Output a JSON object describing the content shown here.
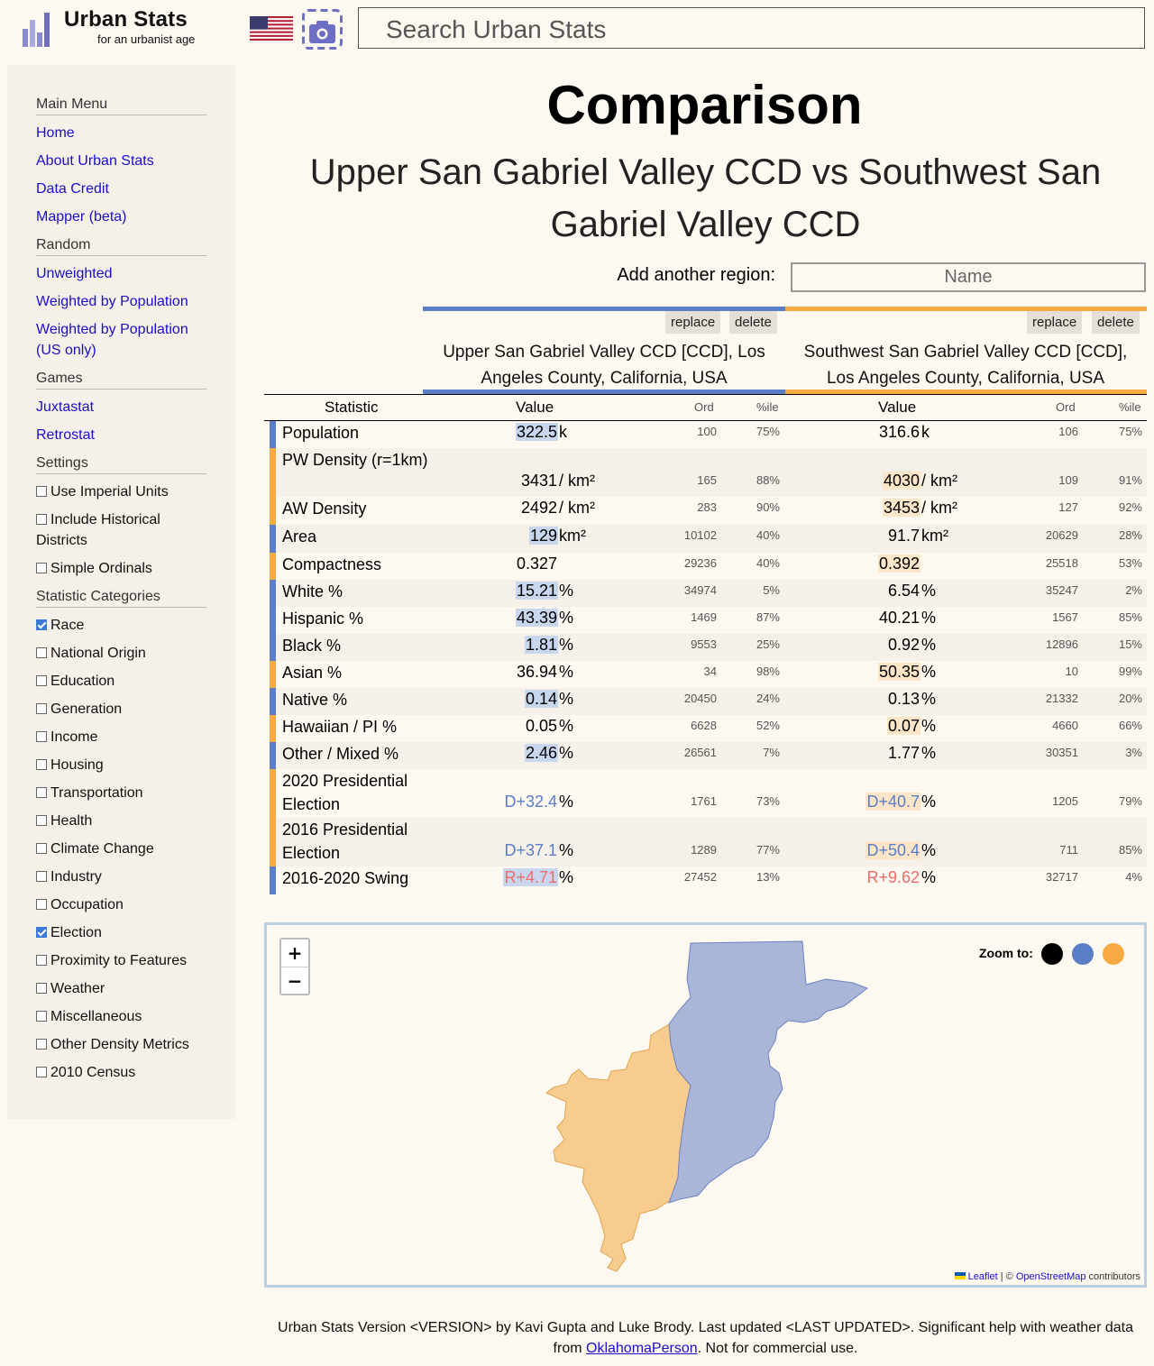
{
  "header": {
    "brand_title": "Urban Stats",
    "brand_subtitle": "for an urbanist age",
    "search_placeholder": "Search Urban Stats"
  },
  "sidebar": {
    "main_menu_heading": "Main Menu",
    "main_menu": [
      "Home",
      "About Urban Stats",
      "Data Credit",
      "Mapper (beta)"
    ],
    "random_heading": "Random",
    "random": [
      "Unweighted",
      "Weighted by Population",
      "Weighted by Population (US only)"
    ],
    "games_heading": "Games",
    "games": [
      "Juxtastat",
      "Retrostat"
    ],
    "settings_heading": "Settings",
    "settings": [
      {
        "label": "Use Imperial Units",
        "checked": false
      },
      {
        "label": "Include Historical Districts",
        "checked": false
      },
      {
        "label": "Simple Ordinals",
        "checked": false
      }
    ],
    "categories_heading": "Statistic Categories",
    "categories": [
      {
        "label": "Race",
        "checked": true
      },
      {
        "label": "National Origin",
        "checked": false
      },
      {
        "label": "Education",
        "checked": false
      },
      {
        "label": "Generation",
        "checked": false
      },
      {
        "label": "Income",
        "checked": false
      },
      {
        "label": "Housing",
        "checked": false
      },
      {
        "label": "Transportation",
        "checked": false
      },
      {
        "label": "Health",
        "checked": false
      },
      {
        "label": "Climate Change",
        "checked": false
      },
      {
        "label": "Industry",
        "checked": false
      },
      {
        "label": "Occupation",
        "checked": false
      },
      {
        "label": "Election",
        "checked": true
      },
      {
        "label": "Proximity to Features",
        "checked": false
      },
      {
        "label": "Weather",
        "checked": false
      },
      {
        "label": "Miscellaneous",
        "checked": false
      },
      {
        "label": "Other Density Metrics",
        "checked": false
      },
      {
        "label": "2010 Census",
        "checked": false
      }
    ]
  },
  "main": {
    "title": "Comparison",
    "subtitle": "Upper San Gabriel Valley CCD vs Southwest San Gabriel Valley CCD",
    "add_region_label": "Add another region:",
    "add_region_placeholder": "Name",
    "replace_label": "replace",
    "delete_label": "delete",
    "regions": [
      {
        "name": "Upper San Gabriel Valley CCD [CCD], Los Angeles County, California, USA",
        "color": "#5a7dc8"
      },
      {
        "name": "Southwest San Gabriel Valley CCD [CCD], Los Angeles County, California, USA",
        "color": "#f7aa41"
      }
    ],
    "columns": {
      "statistic": "Statistic",
      "value": "Value",
      "ord": "Ord",
      "pct": "%ile"
    },
    "rows": [
      {
        "stat": "Population",
        "a": {
          "num": "322.5",
          "unit": "k",
          "ord": "100",
          "pct": "75%"
        },
        "b": {
          "num": "316.6",
          "unit": "k",
          "ord": "106",
          "pct": "75%"
        },
        "winner": "a"
      },
      {
        "stat": "PW Density (r=1km)",
        "a": {
          "num": "3431",
          "unit": "/ km²",
          "ord": "165",
          "pct": "88%"
        },
        "b": {
          "num": "4030",
          "unit": "/ km²",
          "ord": "109",
          "pct": "91%"
        },
        "winner": "b"
      },
      {
        "stat": "AW Density",
        "a": {
          "num": "2492",
          "unit": "/ km²",
          "ord": "283",
          "pct": "90%"
        },
        "b": {
          "num": "3453",
          "unit": "/ km²",
          "ord": "127",
          "pct": "92%"
        },
        "winner": "b"
      },
      {
        "stat": "Area",
        "a": {
          "num": "129",
          "unit": "km²",
          "ord": "10102",
          "pct": "40%"
        },
        "b": {
          "num": "91.7",
          "unit": "km²",
          "ord": "20629",
          "pct": "28%"
        },
        "winner": "a"
      },
      {
        "stat": "Compactness",
        "a": {
          "num": "0.327",
          "unit": "",
          "ord": "29236",
          "pct": "40%"
        },
        "b": {
          "num": "0.392",
          "unit": "",
          "ord": "25518",
          "pct": "53%"
        },
        "winner": "b"
      },
      {
        "stat": "White %",
        "a": {
          "num": "15.21",
          "unit": "%",
          "ord": "34974",
          "pct": "5%"
        },
        "b": {
          "num": "6.54",
          "unit": "%",
          "ord": "35247",
          "pct": "2%"
        },
        "winner": "a"
      },
      {
        "stat": "Hispanic %",
        "a": {
          "num": "43.39",
          "unit": "%",
          "ord": "1469",
          "pct": "87%"
        },
        "b": {
          "num": "40.21",
          "unit": "%",
          "ord": "1567",
          "pct": "85%"
        },
        "winner": "a"
      },
      {
        "stat": "Black %",
        "a": {
          "num": "1.81",
          "unit": "%",
          "ord": "9553",
          "pct": "25%"
        },
        "b": {
          "num": "0.92",
          "unit": "%",
          "ord": "12896",
          "pct": "15%"
        },
        "winner": "a"
      },
      {
        "stat": "Asian %",
        "a": {
          "num": "36.94",
          "unit": "%",
          "ord": "34",
          "pct": "98%"
        },
        "b": {
          "num": "50.35",
          "unit": "%",
          "ord": "10",
          "pct": "99%"
        },
        "winner": "b"
      },
      {
        "stat": "Native %",
        "a": {
          "num": "0.14",
          "unit": "%",
          "ord": "20450",
          "pct": "24%"
        },
        "b": {
          "num": "0.13",
          "unit": "%",
          "ord": "21332",
          "pct": "20%"
        },
        "winner": "a"
      },
      {
        "stat": "Hawaiian / PI %",
        "a": {
          "num": "0.05",
          "unit": "%",
          "ord": "6628",
          "pct": "52%"
        },
        "b": {
          "num": "0.07",
          "unit": "%",
          "ord": "4660",
          "pct": "66%"
        },
        "winner": "b"
      },
      {
        "stat": "Other / Mixed %",
        "a": {
          "num": "2.46",
          "unit": "%",
          "ord": "26561",
          "pct": "7%"
        },
        "b": {
          "num": "1.77",
          "unit": "%",
          "ord": "30351",
          "pct": "3%"
        },
        "winner": "a"
      },
      {
        "stat": "2020 Presidential Election",
        "a": {
          "num": "D+32.4",
          "unit": "%",
          "ord": "1761",
          "pct": "73%"
        },
        "b": {
          "num": "D+40.7",
          "unit": "%",
          "ord": "1205",
          "pct": "79%"
        },
        "winner": "b",
        "party": "D"
      },
      {
        "stat": "2016 Presidential Election",
        "a": {
          "num": "D+37.1",
          "unit": "%",
          "ord": "1289",
          "pct": "77%"
        },
        "b": {
          "num": "D+50.4",
          "unit": "%",
          "ord": "711",
          "pct": "85%"
        },
        "winner": "b",
        "party": "D"
      },
      {
        "stat": "2016-2020 Swing",
        "a": {
          "num": "R+4.71",
          "unit": "%",
          "ord": "27452",
          "pct": "13%"
        },
        "b": {
          "num": "R+9.62",
          "unit": "%",
          "ord": "32717",
          "pct": "4%"
        },
        "winner": "a",
        "party": "R"
      }
    ]
  },
  "map": {
    "zoom_in": "+",
    "zoom_out": "−",
    "zoom_to_label": "Zoom to:",
    "zoom_colors": [
      "#000000",
      "#5a7dc8",
      "#f7aa41"
    ],
    "attribution_leaflet": "Leaflet",
    "attribution_sep": " | © ",
    "attribution_osm": "OpenStreetMap",
    "attribution_tail": " contributors"
  },
  "footer": {
    "text_before": "Urban Stats Version <VERSION> by Kavi Gupta and Luke Brody. Last updated <LAST UPDATED>. Significant help with weather data from ",
    "link": "OklahomaPerson",
    "text_after": ". Not for commercial use."
  }
}
